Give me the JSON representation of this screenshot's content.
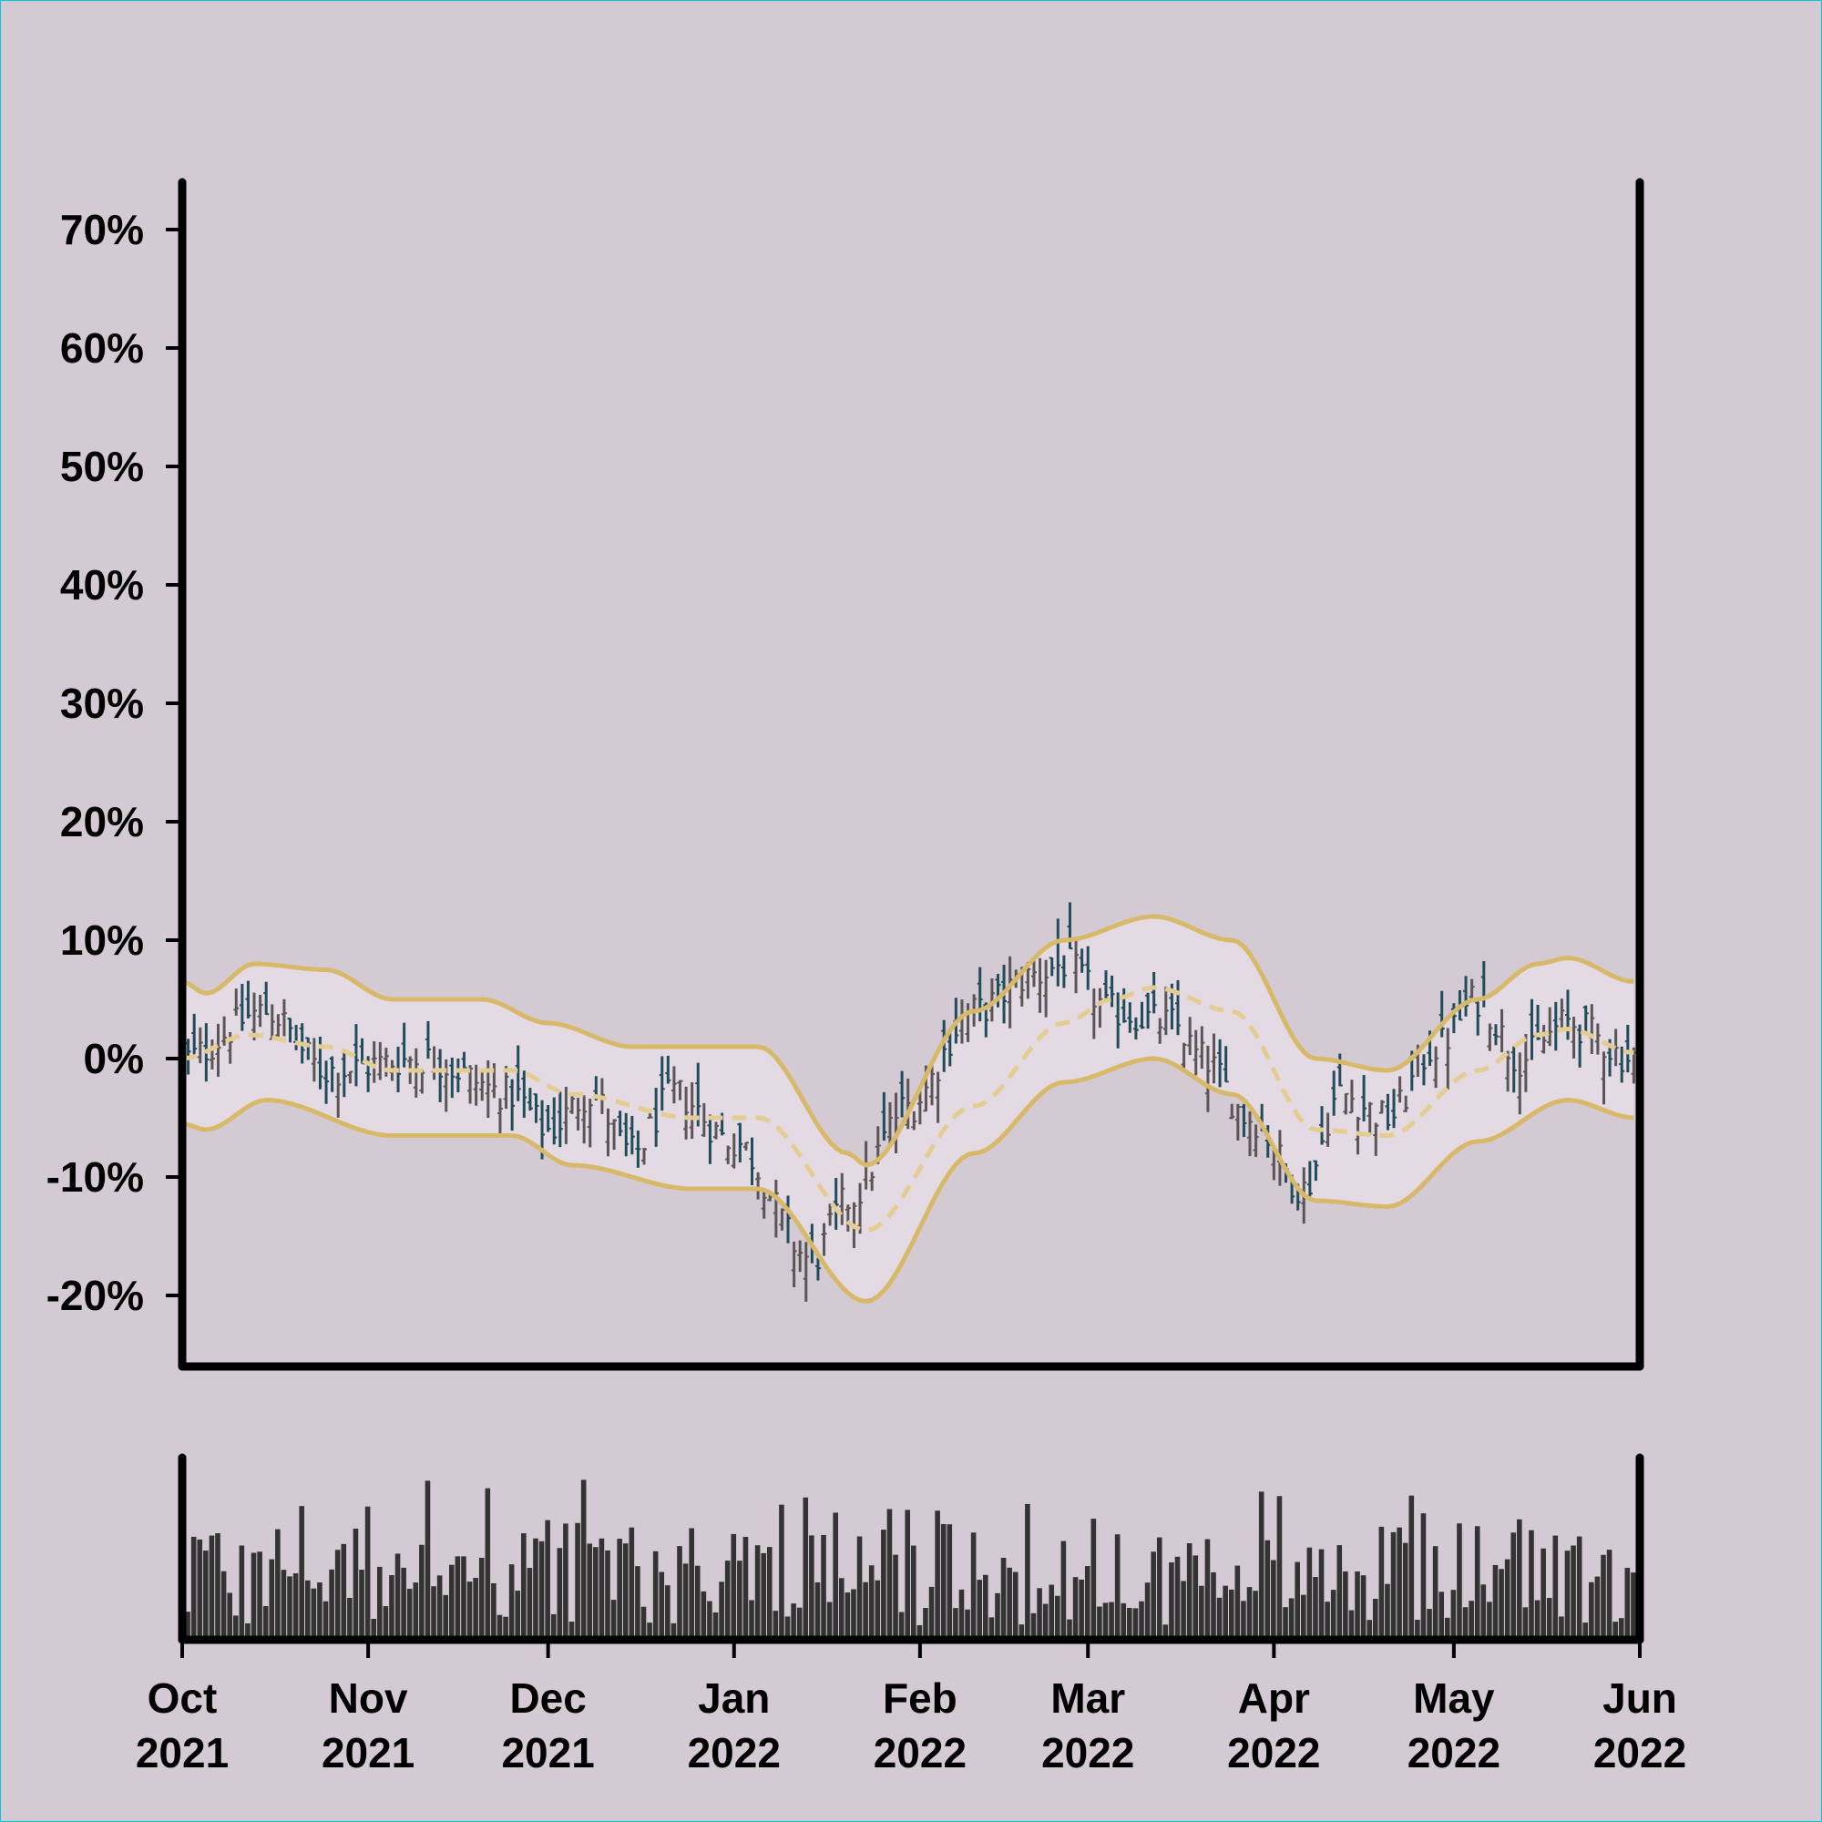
{
  "chart_data": {
    "type": "ohlc",
    "x_range": [
      "2021-10-01",
      "2022-06-01"
    ],
    "x_ticks": [
      {
        "month": "Oct",
        "year": "2021",
        "date": "2021-10-01"
      },
      {
        "month": "Nov",
        "year": "2021",
        "date": "2021-11-01"
      },
      {
        "month": "Dec",
        "year": "2021",
        "date": "2021-12-01"
      },
      {
        "month": "Jan",
        "year": "2022",
        "date": "2022-01-01"
      },
      {
        "month": "Feb",
        "year": "2022",
        "date": "2022-02-01"
      },
      {
        "month": "Mar",
        "year": "2022",
        "date": "2022-03-01"
      },
      {
        "month": "Apr",
        "year": "2022",
        "date": "2022-04-01"
      },
      {
        "month": "May",
        "year": "2022",
        "date": "2022-05-01"
      },
      {
        "month": "Jun",
        "year": "2022",
        "date": "2022-06-01"
      }
    ],
    "y_ticks": [
      "70%",
      "60%",
      "50%",
      "40%",
      "30%",
      "20%",
      "10%",
      "0%",
      "-10%",
      "-20%"
    ],
    "y_tick_values": [
      70,
      60,
      50,
      40,
      30,
      20,
      10,
      0,
      -10,
      -20
    ],
    "ylim": [
      -26,
      74
    ],
    "price_anchors": [
      {
        "date": "2021-10-01",
        "value": 0
      },
      {
        "date": "2021-10-15",
        "value": 4
      },
      {
        "date": "2021-10-25",
        "value": -1
      },
      {
        "date": "2021-11-10",
        "value": 0
      },
      {
        "date": "2021-11-25",
        "value": -3
      },
      {
        "date": "2021-12-01",
        "value": -6
      },
      {
        "date": "2021-12-08",
        "value": -3
      },
      {
        "date": "2021-12-15",
        "value": -8
      },
      {
        "date": "2021-12-22",
        "value": -3
      },
      {
        "date": "2022-01-01",
        "value": -7
      },
      {
        "date": "2022-01-14",
        "value": -17
      },
      {
        "date": "2022-01-20",
        "value": -12
      },
      {
        "date": "2022-01-30",
        "value": -4
      },
      {
        "date": "2022-02-10",
        "value": 4
      },
      {
        "date": "2022-02-20",
        "value": 7
      },
      {
        "date": "2022-02-25",
        "value": 8
      },
      {
        "date": "2022-03-05",
        "value": 4
      },
      {
        "date": "2022-03-15",
        "value": 3
      },
      {
        "date": "2022-03-20",
        "value": 0
      },
      {
        "date": "2022-03-28",
        "value": -5
      },
      {
        "date": "2022-04-06",
        "value": -11
      },
      {
        "date": "2022-04-12",
        "value": -3
      },
      {
        "date": "2022-04-20",
        "value": -5
      },
      {
        "date": "2022-04-28",
        "value": 1
      },
      {
        "date": "2022-05-05",
        "value": 5
      },
      {
        "date": "2022-05-12",
        "value": 0
      },
      {
        "date": "2022-05-20",
        "value": 3
      },
      {
        "date": "2022-05-31",
        "value": 0
      }
    ],
    "moving_average_anchors": [
      {
        "date": "2021-10-01",
        "value": 0
      },
      {
        "date": "2021-10-12",
        "value": 2
      },
      {
        "date": "2021-10-25",
        "value": 1
      },
      {
        "date": "2021-11-05",
        "value": -1
      },
      {
        "date": "2021-11-25",
        "value": -1
      },
      {
        "date": "2021-12-05",
        "value": -3
      },
      {
        "date": "2021-12-25",
        "value": -5
      },
      {
        "date": "2022-01-05",
        "value": -5
      },
      {
        "date": "2022-01-23",
        "value": -14.5
      },
      {
        "date": "2022-02-10",
        "value": -4
      },
      {
        "date": "2022-02-25",
        "value": 3
      },
      {
        "date": "2022-03-05",
        "value": 5
      },
      {
        "date": "2022-03-12",
        "value": 6
      },
      {
        "date": "2022-03-25",
        "value": 4
      },
      {
        "date": "2022-04-08",
        "value": -6
      },
      {
        "date": "2022-04-20",
        "value": -6.5
      },
      {
        "date": "2022-05-05",
        "value": -1
      },
      {
        "date": "2022-05-15",
        "value": 2
      },
      {
        "date": "2022-05-20",
        "value": 2.5
      },
      {
        "date": "2022-05-31",
        "value": 0.5
      }
    ],
    "upper_band_anchors": [
      {
        "date": "2021-10-01",
        "value": 6.5
      },
      {
        "date": "2021-10-05",
        "value": 5.5
      },
      {
        "date": "2021-10-13",
        "value": 8
      },
      {
        "date": "2021-10-25",
        "value": 7.5
      },
      {
        "date": "2021-11-05",
        "value": 5
      },
      {
        "date": "2021-11-20",
        "value": 5
      },
      {
        "date": "2021-12-01",
        "value": 3
      },
      {
        "date": "2021-12-15",
        "value": 1
      },
      {
        "date": "2022-01-05",
        "value": 1
      },
      {
        "date": "2022-01-20",
        "value": -8
      },
      {
        "date": "2022-01-23",
        "value": -9
      },
      {
        "date": "2022-02-10",
        "value": 4
      },
      {
        "date": "2022-02-25",
        "value": 10
      },
      {
        "date": "2022-03-12",
        "value": 12
      },
      {
        "date": "2022-03-25",
        "value": 10
      },
      {
        "date": "2022-04-08",
        "value": 0
      },
      {
        "date": "2022-04-20",
        "value": -1
      },
      {
        "date": "2022-05-05",
        "value": 5
      },
      {
        "date": "2022-05-15",
        "value": 8
      },
      {
        "date": "2022-05-20",
        "value": 8.5
      },
      {
        "date": "2022-05-31",
        "value": 6.5
      }
    ],
    "lower_band_anchors": [
      {
        "date": "2021-10-01",
        "value": -5.5
      },
      {
        "date": "2021-10-05",
        "value": -6
      },
      {
        "date": "2021-10-15",
        "value": -3.5
      },
      {
        "date": "2021-11-05",
        "value": -6.5
      },
      {
        "date": "2021-11-25",
        "value": -6.5
      },
      {
        "date": "2021-12-05",
        "value": -9
      },
      {
        "date": "2021-12-25",
        "value": -11
      },
      {
        "date": "2022-01-05",
        "value": -11
      },
      {
        "date": "2022-01-23",
        "value": -20.5
      },
      {
        "date": "2022-02-10",
        "value": -8
      },
      {
        "date": "2022-02-25",
        "value": -2
      },
      {
        "date": "2022-03-12",
        "value": 0
      },
      {
        "date": "2022-03-25",
        "value": -3
      },
      {
        "date": "2022-04-08",
        "value": -12
      },
      {
        "date": "2022-04-20",
        "value": -12.5
      },
      {
        "date": "2022-05-05",
        "value": -7
      },
      {
        "date": "2022-05-20",
        "value": -3.5
      },
      {
        "date": "2022-05-31",
        "value": -5
      }
    ],
    "series_styles": {
      "up_color": "#5a5657",
      "down_color": "#234c5a",
      "band_color": "#d8b96a",
      "band_fill": "#e6dde6",
      "volume_color": "#333333"
    },
    "grid": false,
    "legend": "none"
  },
  "colors": {
    "background": "#d4cad3",
    "axis": "#000000"
  }
}
